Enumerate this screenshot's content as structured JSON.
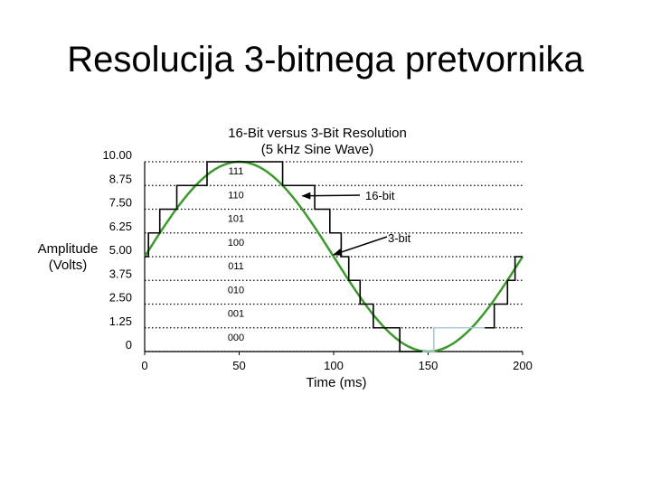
{
  "slide": {
    "title": "Resolucija 3-bitnega pretvornika"
  },
  "chart_data": {
    "type": "line",
    "title_lines": [
      "16-Bit versus 3-Bit Resolution",
      "(5 kHz Sine Wave)"
    ],
    "xlabel": "Time (ms)",
    "ylabel_lines": [
      "Amplitude",
      "(Volts)"
    ],
    "xlim": [
      0,
      200
    ],
    "ylim": [
      0,
      10
    ],
    "x_ticks": [
      "0",
      "50",
      "100",
      "150",
      "200"
    ],
    "y_ticks": [
      {
        "value": 0,
        "label": "0"
      },
      {
        "value": 1.25,
        "label": "1.25"
      },
      {
        "value": 2.5,
        "label": "2.50"
      },
      {
        "value": 3.75,
        "label": "3.75"
      },
      {
        "value": 5,
        "label": "5.00"
      },
      {
        "value": 6.25,
        "label": "6.25"
      },
      {
        "value": 7.5,
        "label": "7.50"
      },
      {
        "value": 8.75,
        "label": "8.75"
      },
      {
        "value": 10,
        "label": "10.00"
      }
    ],
    "codes": [
      {
        "value": 0,
        "label": "000"
      },
      {
        "value": 1.25,
        "label": "001"
      },
      {
        "value": 2.5,
        "label": "010"
      },
      {
        "value": 3.75,
        "label": "011"
      },
      {
        "value": 5,
        "label": "100"
      },
      {
        "value": 6.25,
        "label": "101"
      },
      {
        "value": 7.5,
        "label": "110"
      },
      {
        "value": 8.75,
        "label": "111"
      }
    ],
    "grid": "dotted horizontal",
    "series": [
      {
        "name": "16-bit",
        "color": "#3a9a2a",
        "kind": "sine",
        "offset": 5,
        "amplitude": 5,
        "period_ms": 200,
        "x": [
          0,
          10,
          20,
          30,
          40,
          50,
          60,
          70,
          80,
          90,
          100,
          110,
          120,
          130,
          140,
          150,
          160,
          170,
          180,
          190,
          200
        ],
        "y": [
          5,
          6.55,
          7.94,
          9.05,
          9.76,
          10,
          9.76,
          9.05,
          7.94,
          6.55,
          5,
          3.45,
          2.06,
          0.95,
          0.24,
          0,
          0.24,
          0.95,
          2.06,
          3.45,
          5
        ]
      },
      {
        "name": "3-bit",
        "color": "#000000",
        "kind": "step",
        "steps": [
          {
            "x0": 0,
            "x1": 2,
            "y": 5
          },
          {
            "x0": 2,
            "x1": 8,
            "y": 6.25
          },
          {
            "x0": 8,
            "x1": 17,
            "y": 7.5
          },
          {
            "x0": 17,
            "x1": 33,
            "y": 8.75
          },
          {
            "x0": 33,
            "x1": 73,
            "y": 10
          },
          {
            "x0": 73,
            "x1": 90,
            "y": 8.75
          },
          {
            "x0": 90,
            "x1": 98,
            "y": 7.5
          },
          {
            "x0": 98,
            "x1": 104,
            "y": 6.25
          },
          {
            "x0": 104,
            "x1": 108,
            "y": 5
          },
          {
            "x0": 108,
            "x1": 114,
            "y": 3.75
          },
          {
            "x0": 114,
            "x1": 121,
            "y": 2.5
          },
          {
            "x0": 121,
            "x1": 135,
            "y": 1.25
          },
          {
            "x0": 135,
            "x1": 147,
            "y": 0
          }
        ],
        "faded_color": "#a9c7dd",
        "faded_steps": [
          {
            "x0": 147,
            "x1": 153,
            "y": 0
          },
          {
            "x0": 153,
            "x1": 180,
            "y": 1.25
          }
        ],
        "rise_steps": [
          {
            "x0": 180,
            "x1": 185,
            "y": 1.25
          },
          {
            "x0": 185,
            "x1": 192,
            "y": 2.5
          },
          {
            "x0": 192,
            "x1": 196,
            "y": 3.75
          },
          {
            "x0": 196,
            "x1": 200,
            "y": 5
          }
        ]
      }
    ],
    "annotations": [
      {
        "text": "16-bit",
        "target_x": 82,
        "target_y": 8.2
      },
      {
        "text": "3-bit",
        "target_x": 99,
        "target_y": 5.1
      }
    ]
  }
}
